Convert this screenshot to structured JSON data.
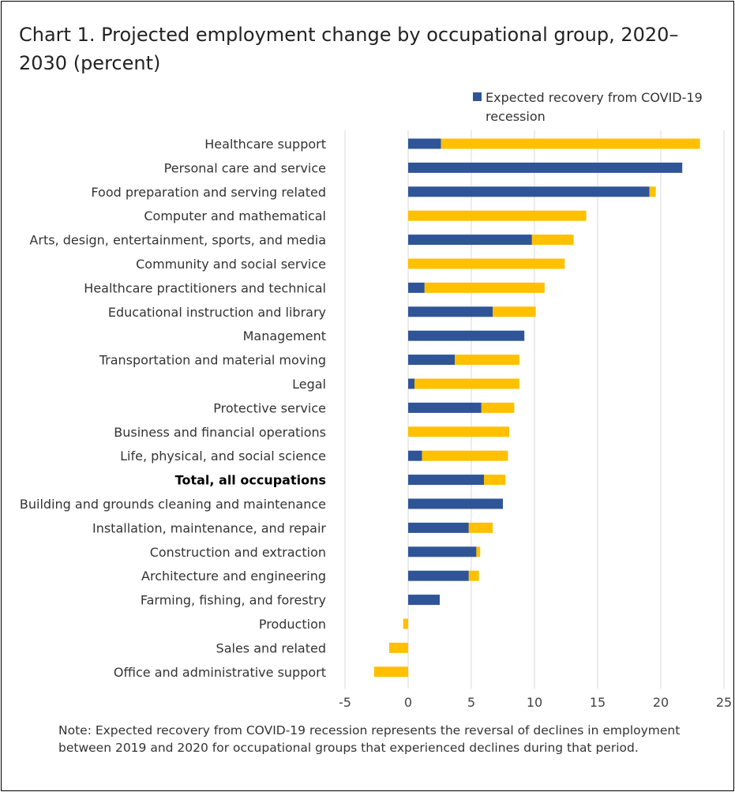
{
  "chart_data": {
    "type": "bar",
    "orientation": "horizontal",
    "stacked": true,
    "title": "Chart 1. Projected employment change by occupational group, 2020–2030 (percent)",
    "xlim": [
      -5,
      25
    ],
    "xticks": [
      "-5",
      "0",
      "5",
      "10",
      "15",
      "20",
      "25"
    ],
    "grid": "vertical",
    "legend_position": "top-right",
    "categories": [
      "Healthcare support",
      "Personal care and service",
      "Food preparation and serving related",
      "Computer and mathematical",
      "Arts, design, entertainment, sports, and media",
      "Community and social service",
      "Healthcare practitioners and technical",
      "Educational instruction and library",
      "Management",
      "Transportation and material moving",
      "Legal",
      "Protective service",
      "Business and financial operations",
      "Life, physical, and social science",
      "Total, all occupations",
      "Building and grounds cleaning and maintenance",
      "Installation, maintenance, and repair",
      "Construction and extraction",
      "Architecture and engineering",
      "Farming, fishing, and forestry",
      "Production",
      "Sales and related",
      "Office and administrative support"
    ],
    "bold_category": "Total, all occupations",
    "series": [
      {
        "name": "Expected recovery from COVID-19 recession",
        "color": "#2F5597",
        "values": [
          2.6,
          21.7,
          19.1,
          0,
          9.8,
          0,
          1.3,
          6.7,
          9.2,
          3.7,
          0.5,
          5.8,
          0,
          1.1,
          6.0,
          7.5,
          4.8,
          5.4,
          4.8,
          2.5,
          0,
          0,
          0
        ]
      },
      {
        "color": "#FFC000",
        "values": [
          20.5,
          0,
          0.5,
          14.1,
          3.3,
          12.4,
          9.5,
          3.4,
          0,
          5.1,
          8.3,
          2.6,
          8.0,
          6.8,
          1.7,
          0,
          1.9,
          0.3,
          0.8,
          0,
          -0.4,
          -1.5,
          -2.7
        ]
      }
    ]
  },
  "note": "Note: Expected recovery from COVID-19 recession represents the reversal of declines in employment between 2019 and 2020 for occupational groups that experienced declines during that period."
}
